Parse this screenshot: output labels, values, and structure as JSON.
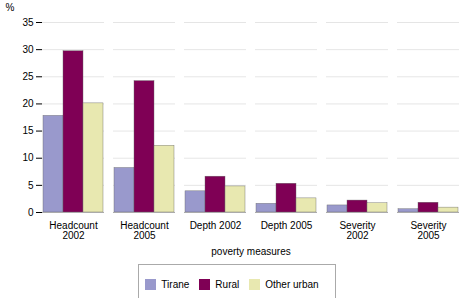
{
  "chart_data": {
    "type": "bar",
    "xlabel": "poverty measures",
    "ylabel": "%",
    "categories": [
      "Headcount\n2002",
      "Headcount\n2005",
      "Depth 2002",
      "Depth 2005",
      "Severity\n2002",
      "Severity\n2005"
    ],
    "series": [
      {
        "name": "Tirane",
        "color": "#9999cc",
        "values": [
          17.8,
          8.2,
          3.9,
          1.6,
          1.3,
          0.6
        ]
      },
      {
        "name": "Rural",
        "color": "#7f0055",
        "values": [
          29.7,
          24.2,
          6.6,
          5.3,
          2.2,
          1.8
        ]
      },
      {
        "name": "Other urban",
        "color": "#e8e8b0",
        "values": [
          20.1,
          12.3,
          4.8,
          2.6,
          1.7,
          0.9
        ]
      }
    ],
    "ylim": [
      0,
      35
    ],
    "yticks": [
      0,
      5,
      10,
      15,
      20,
      25,
      30,
      35
    ],
    "grid": true,
    "legend": "bottom"
  }
}
